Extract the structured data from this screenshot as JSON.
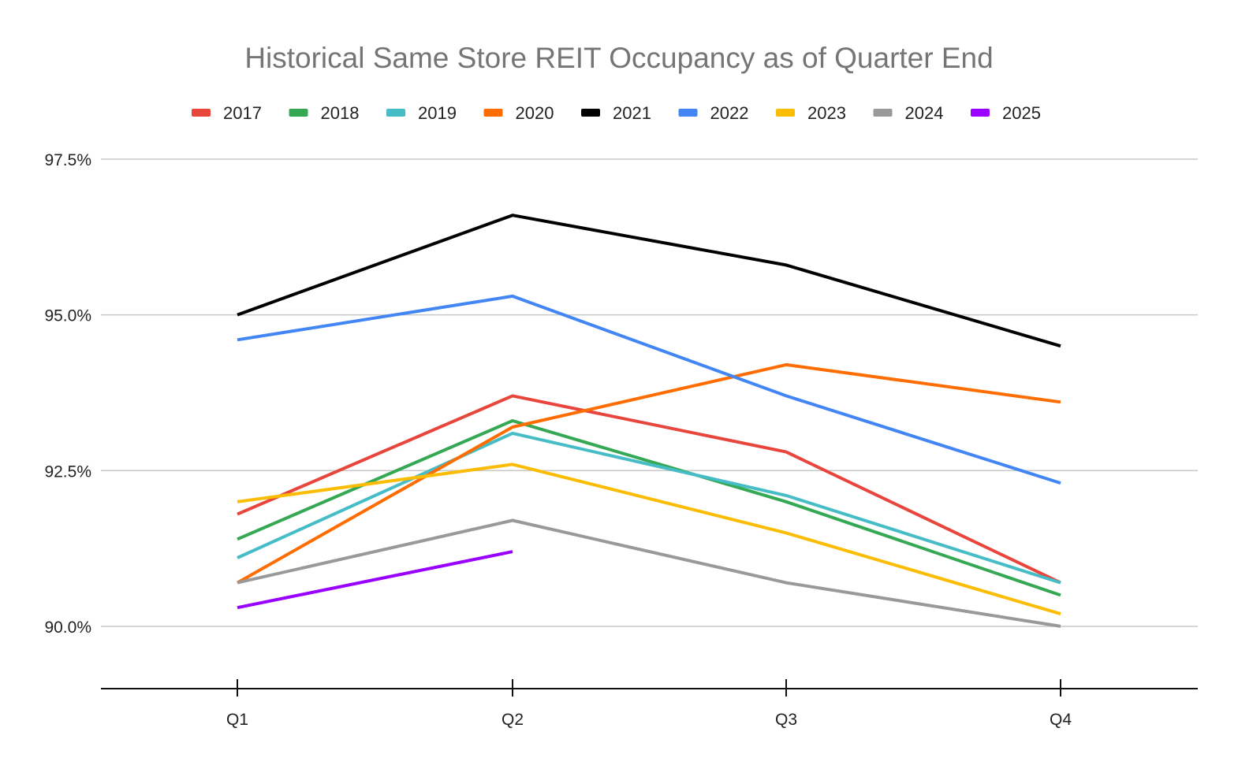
{
  "chart_data": {
    "type": "line",
    "title": "Historical Same Store REIT Occupancy as of Quarter End",
    "categories": [
      "Q1",
      "Q2",
      "Q3",
      "Q4"
    ],
    "y_ticks": [
      "90.0%",
      "92.5%",
      "95.0%",
      "97.5%"
    ],
    "y_tick_values": [
      90.0,
      92.5,
      95.0,
      97.5
    ],
    "ylim": [
      89.0,
      97.5
    ],
    "grid": true,
    "legend_position": "top",
    "series": [
      {
        "name": "2017",
        "color": "#e8453c",
        "values": [
          91.8,
          93.7,
          92.8,
          90.7
        ]
      },
      {
        "name": "2018",
        "color": "#34a853",
        "values": [
          91.4,
          93.3,
          92.0,
          90.5
        ]
      },
      {
        "name": "2019",
        "color": "#46bdc6",
        "values": [
          91.1,
          93.1,
          92.1,
          90.7
        ]
      },
      {
        "name": "2020",
        "color": "#ff6d01",
        "values": [
          90.7,
          93.2,
          94.2,
          93.6
        ]
      },
      {
        "name": "2021",
        "color": "#000000",
        "values": [
          95.0,
          96.6,
          95.8,
          94.5
        ]
      },
      {
        "name": "2022",
        "color": "#4285f4",
        "values": [
          94.6,
          95.3,
          93.7,
          92.3
        ]
      },
      {
        "name": "2023",
        "color": "#fbbc04",
        "values": [
          92.0,
          92.6,
          91.5,
          90.2
        ]
      },
      {
        "name": "2024",
        "color": "#999999",
        "values": [
          90.7,
          91.7,
          90.7,
          90.0
        ]
      },
      {
        "name": "2025",
        "color": "#9900ff",
        "values": [
          90.3,
          91.2,
          null,
          null
        ]
      }
    ]
  }
}
